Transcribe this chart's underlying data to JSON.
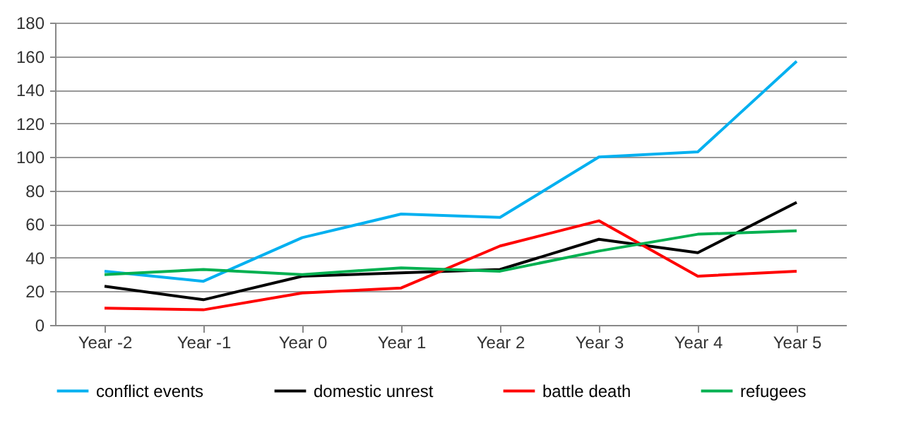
{
  "chart_data": {
    "type": "line",
    "categories": [
      "Year -2",
      "Year -1",
      "Year 0",
      "Year 1",
      "Year 2",
      "Year 3",
      "Year 4",
      "Year 5"
    ],
    "series": [
      {
        "name": "conflict events",
        "color": "#00b0f0",
        "values": [
          32,
          26,
          52,
          66,
          64,
          100,
          103,
          157
        ]
      },
      {
        "name": "domestic unrest",
        "color": "#000000",
        "values": [
          23,
          15,
          29,
          31,
          33,
          51,
          43,
          73
        ]
      },
      {
        "name": "battle death",
        "color": "#ff0000",
        "values": [
          10,
          9,
          19,
          22,
          47,
          62,
          29,
          32
        ]
      },
      {
        "name": "refugees",
        "color": "#00b050",
        "values": [
          30,
          33,
          30,
          34,
          32,
          44,
          54,
          56
        ]
      }
    ],
    "ylim": [
      0,
      180
    ],
    "yticks": [
      0,
      20,
      40,
      60,
      80,
      100,
      120,
      140,
      160,
      180
    ],
    "grid": "y",
    "legend": "bottom",
    "marker": "none",
    "line_style": "solid"
  }
}
